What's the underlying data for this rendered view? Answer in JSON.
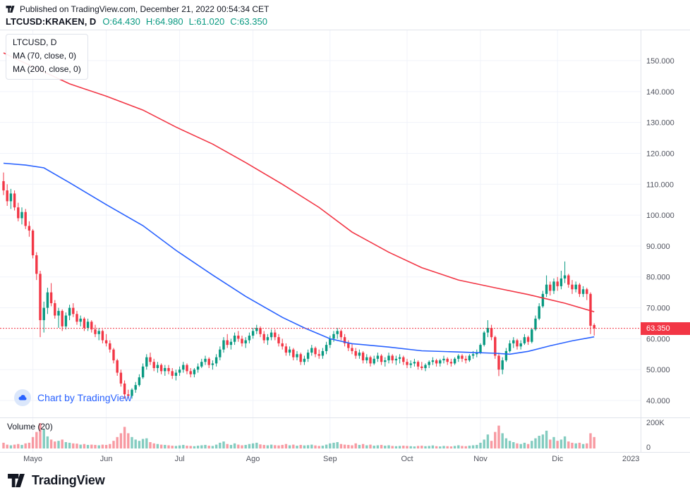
{
  "header": {
    "published": "Published on TradingView.com, December 21, 2022 00:54:34 CET",
    "symbol": "LTCUSD:KRAKEN, D",
    "ohlc": [
      "O:64.430",
      "H:64.980",
      "L:61.020",
      "C:63.350"
    ],
    "ohlc_color": "#089981"
  },
  "legend": {
    "title": "LTCUSD, D",
    "ma70": "MA (70, close, 0)",
    "ma200": "MA (200, close, 0)"
  },
  "watermark": "Chart by TradingView",
  "volume_pane": {
    "label": "Volume (20)"
  },
  "price_tag": "63.350",
  "footer": {
    "brand": "TradingView"
  },
  "colors": {
    "accent_blue": "#2962ff",
    "text_dark": "#131722",
    "axis_text": "#50535e"
  },
  "chart_data": {
    "type": "candlestick",
    "title": "LTCUSD:KRAKEN, D",
    "symbol": "LTCUSD",
    "exchange": "KRAKEN",
    "interval": "D",
    "xlabel": "",
    "ylabel": "",
    "ylim": [
      38,
      157
    ],
    "grid": true,
    "legend_position": "top-left",
    "last_price": 63.35,
    "price_ticks": [
      {
        "v": 150,
        "label": "150.000"
      },
      {
        "v": 140,
        "label": "140.000"
      },
      {
        "v": 130,
        "label": "130.000"
      },
      {
        "v": 120,
        "label": "120.000"
      },
      {
        "v": 110,
        "label": "110.000"
      },
      {
        "v": 100,
        "label": "100.000"
      },
      {
        "v": 90,
        "label": "90.000"
      },
      {
        "v": 80,
        "label": "80.000"
      },
      {
        "v": 70,
        "label": "70.000"
      },
      {
        "v": 60,
        "label": "60.000"
      },
      {
        "v": 50,
        "label": "50.000"
      },
      {
        "v": 40,
        "label": "40.000"
      }
    ],
    "volume_axis": {
      "max_k": 200,
      "labels": [
        "200K",
        "0"
      ]
    },
    "months": [
      {
        "label": "Mayo",
        "i": 8,
        "grid": true
      },
      {
        "label": "Jun",
        "i": 28,
        "grid": true
      },
      {
        "label": "Jul",
        "i": 48,
        "grid": true
      },
      {
        "label": "Ago",
        "i": 68,
        "grid": true
      },
      {
        "label": "Sep",
        "i": 89,
        "grid": true
      },
      {
        "label": "Oct",
        "i": 110,
        "grid": true
      },
      {
        "label": "Nov",
        "i": 130,
        "grid": true
      },
      {
        "label": "Dic",
        "i": 151,
        "grid": true
      },
      {
        "label": "2023",
        "i": 171,
        "grid": false
      }
    ],
    "colors": {
      "up": "#089981",
      "down": "#f23645",
      "vol_up": "rgba(8,153,129,0.5)",
      "vol_down": "rgba(242,54,69,0.5)"
    },
    "ma70": {
      "color": "#2962ff",
      "points": [
        [
          0,
          116.8
        ],
        [
          6,
          116.2
        ],
        [
          11,
          115.3
        ],
        [
          18,
          110.5
        ],
        [
          28,
          103.4
        ],
        [
          38,
          96.6
        ],
        [
          47,
          88.6
        ],
        [
          57,
          80.6
        ],
        [
          66,
          73.7
        ],
        [
          76,
          66.9
        ],
        [
          82,
          63.5
        ],
        [
          89,
          60.0
        ],
        [
          95,
          58.4
        ],
        [
          105,
          57.3
        ],
        [
          114,
          56.1
        ],
        [
          124,
          55.7
        ],
        [
          134,
          55.3
        ],
        [
          138,
          55.0
        ],
        [
          143,
          55.9
        ],
        [
          149,
          57.7
        ],
        [
          155,
          59.3
        ],
        [
          161,
          60.6
        ]
      ]
    },
    "ma200": {
      "color": "#f23645",
      "points": [
        [
          0,
          152.5
        ],
        [
          9,
          147.5
        ],
        [
          18,
          142.5
        ],
        [
          28,
          138.5
        ],
        [
          38,
          134.0
        ],
        [
          47,
          128.5
        ],
        [
          57,
          123.0
        ],
        [
          66,
          117.0
        ],
        [
          76,
          110.0
        ],
        [
          86,
          102.5
        ],
        [
          95,
          94.5
        ],
        [
          105,
          88.0
        ],
        [
          114,
          83.0
        ],
        [
          124,
          79.0
        ],
        [
          134,
          76.5
        ],
        [
          143,
          74.3
        ],
        [
          153,
          71.5
        ],
        [
          161,
          68.7
        ]
      ]
    },
    "candles": [
      [
        111.0,
        113.8,
        106.5,
        108.0
      ],
      [
        108.0,
        110.0,
        103.0,
        104.5
      ],
      [
        104.5,
        108.5,
        102.0,
        107.0
      ],
      [
        107.0,
        108.0,
        101.5,
        102.5
      ],
      [
        102.5,
        104.0,
        98.0,
        99.0
      ],
      [
        99.0,
        102.5,
        97.0,
        101.0
      ],
      [
        101.0,
        102.0,
        95.5,
        96.5
      ],
      [
        96.5,
        98.0,
        93.0,
        95.0
      ],
      [
        95.0,
        95.5,
        86.0,
        87.0
      ],
      [
        87.0,
        88.0,
        79.0,
        81.0
      ],
      [
        81.0,
        82.0,
        60.5,
        66.0
      ],
      [
        66.0,
        72.0,
        62.0,
        70.0
      ],
      [
        70.0,
        76.5,
        68.0,
        75.0
      ],
      [
        75.0,
        78.0,
        70.5,
        71.5
      ],
      [
        71.5,
        72.5,
        66.5,
        67.5
      ],
      [
        67.5,
        70.0,
        63.5,
        69.0
      ],
      [
        69.0,
        69.5,
        62.5,
        64.0
      ],
      [
        64.0,
        68.5,
        63.0,
        67.5
      ],
      [
        67.5,
        71.0,
        66.0,
        70.0
      ],
      [
        70.0,
        71.5,
        67.0,
        68.0
      ],
      [
        68.0,
        69.0,
        64.5,
        65.5
      ],
      [
        65.5,
        67.5,
        64.0,
        66.5
      ],
      [
        66.5,
        67.0,
        62.5,
        63.5
      ],
      [
        63.5,
        66.5,
        62.5,
        65.5
      ],
      [
        65.5,
        66.0,
        62.0,
        63.0
      ],
      [
        63.0,
        64.5,
        60.5,
        61.5
      ],
      [
        61.5,
        63.5,
        59.5,
        62.5
      ],
      [
        62.5,
        63.0,
        58.5,
        59.5
      ],
      [
        59.5,
        61.5,
        57.5,
        58.5
      ],
      [
        58.5,
        59.5,
        55.5,
        56.5
      ],
      [
        56.5,
        57.0,
        52.0,
        53.0
      ],
      [
        53.0,
        53.5,
        48.0,
        49.0
      ],
      [
        49.0,
        50.0,
        44.5,
        45.5
      ],
      [
        45.5,
        46.5,
        40.6,
        42.0
      ],
      [
        42.0,
        43.5,
        40.8,
        41.5
      ],
      [
        41.5,
        44.0,
        40.6,
        43.5
      ],
      [
        43.5,
        46.0,
        42.5,
        45.0
      ],
      [
        45.0,
        48.5,
        44.5,
        47.5
      ],
      [
        47.5,
        52.0,
        47.0,
        51.0
      ],
      [
        51.0,
        55.0,
        50.0,
        54.0
      ],
      [
        54.0,
        55.5,
        51.5,
        52.5
      ],
      [
        52.5,
        53.5,
        49.5,
        50.5
      ],
      [
        50.5,
        52.5,
        49.0,
        51.5
      ],
      [
        51.5,
        52.0,
        48.5,
        49.5
      ],
      [
        49.5,
        51.5,
        48.0,
        50.5
      ],
      [
        50.5,
        51.5,
        48.5,
        49.5
      ],
      [
        49.5,
        50.5,
        47.0,
        48.0
      ],
      [
        48.0,
        50.0,
        46.5,
        49.0
      ],
      [
        49.0,
        51.0,
        48.0,
        50.0
      ],
      [
        50.0,
        52.5,
        49.0,
        51.5
      ],
      [
        51.5,
        52.0,
        48.5,
        49.5
      ],
      [
        49.5,
        50.5,
        47.5,
        48.5
      ],
      [
        48.5,
        50.5,
        47.5,
        50.0
      ],
      [
        50.0,
        52.0,
        49.0,
        51.0
      ],
      [
        51.0,
        53.5,
        50.5,
        52.5
      ],
      [
        52.5,
        54.5,
        51.5,
        53.5
      ],
      [
        53.5,
        54.0,
        50.5,
        51.5
      ],
      [
        51.5,
        53.0,
        50.0,
        52.0
      ],
      [
        52.0,
        55.0,
        51.0,
        54.0
      ],
      [
        54.0,
        57.5,
        53.0,
        56.5
      ],
      [
        56.5,
        60.5,
        55.5,
        59.5
      ],
      [
        59.5,
        61.5,
        57.0,
        58.0
      ],
      [
        58.0,
        60.0,
        56.5,
        59.0
      ],
      [
        59.0,
        62.0,
        58.0,
        61.0
      ],
      [
        61.0,
        62.5,
        59.0,
        60.0
      ],
      [
        60.0,
        61.0,
        57.5,
        58.5
      ],
      [
        58.5,
        60.5,
        57.0,
        59.5
      ],
      [
        59.5,
        62.0,
        58.5,
        61.0
      ],
      [
        61.0,
        63.5,
        60.0,
        62.5
      ],
      [
        62.5,
        64.5,
        61.5,
        63.5
      ],
      [
        63.5,
        64.0,
        60.5,
        61.5
      ],
      [
        61.5,
        62.5,
        58.5,
        59.5
      ],
      [
        59.5,
        61.5,
        58.0,
        60.5
      ],
      [
        60.5,
        63.0,
        59.5,
        62.0
      ],
      [
        62.0,
        63.0,
        59.5,
        60.5
      ],
      [
        60.5,
        61.5,
        57.5,
        58.5
      ],
      [
        58.5,
        60.0,
        56.5,
        57.5
      ],
      [
        57.5,
        58.5,
        54.5,
        55.5
      ],
      [
        55.5,
        57.5,
        54.5,
        56.5
      ],
      [
        56.5,
        57.0,
        53.0,
        54.0
      ],
      [
        54.0,
        56.0,
        53.0,
        55.0
      ],
      [
        55.0,
        55.5,
        51.5,
        52.5
      ],
      [
        52.5,
        54.5,
        51.5,
        53.5
      ],
      [
        53.5,
        56.5,
        52.5,
        55.5
      ],
      [
        55.5,
        58.0,
        54.5,
        57.0
      ],
      [
        57.0,
        57.5,
        54.0,
        55.0
      ],
      [
        55.0,
        56.5,
        53.5,
        54.5
      ],
      [
        54.5,
        57.0,
        53.5,
        56.0
      ],
      [
        56.0,
        59.0,
        55.0,
        58.0
      ],
      [
        58.0,
        61.0,
        57.0,
        60.0
      ],
      [
        60.0,
        62.5,
        59.0,
        61.5
      ],
      [
        61.5,
        63.5,
        60.0,
        62.5
      ],
      [
        62.5,
        63.0,
        59.5,
        60.5
      ],
      [
        60.5,
        61.5,
        57.5,
        58.5
      ],
      [
        58.5,
        59.5,
        56.0,
        57.0
      ],
      [
        57.0,
        58.5,
        55.0,
        56.0
      ],
      [
        56.0,
        57.0,
        53.5,
        54.5
      ],
      [
        54.5,
        56.5,
        53.5,
        55.5
      ],
      [
        55.5,
        56.0,
        52.0,
        53.0
      ],
      [
        53.0,
        55.0,
        52.0,
        54.0
      ],
      [
        54.0,
        54.5,
        51.0,
        52.0
      ],
      [
        52.0,
        54.5,
        51.5,
        53.5
      ],
      [
        53.5,
        55.5,
        52.5,
        54.5
      ],
      [
        54.5,
        55.0,
        51.5,
        52.5
      ],
      [
        52.5,
        54.0,
        51.0,
        53.0
      ],
      [
        53.0,
        55.5,
        52.0,
        54.5
      ],
      [
        54.5,
        55.0,
        52.0,
        53.0
      ],
      [
        53.0,
        54.5,
        51.5,
        53.5
      ],
      [
        53.5,
        55.0,
        52.0,
        54.0
      ],
      [
        54.0,
        54.5,
        51.5,
        52.5
      ],
      [
        52.5,
        53.5,
        50.5,
        51.5
      ],
      [
        51.5,
        53.0,
        50.5,
        52.0
      ],
      [
        52.0,
        53.5,
        51.0,
        52.5
      ],
      [
        52.5,
        53.0,
        50.0,
        51.0
      ],
      [
        51.0,
        52.5,
        49.8,
        50.5
      ],
      [
        50.5,
        52.0,
        49.5,
        51.5
      ],
      [
        51.5,
        53.0,
        50.5,
        52.5
      ],
      [
        52.5,
        54.0,
        51.5,
        53.0
      ],
      [
        53.0,
        53.5,
        51.0,
        52.0
      ],
      [
        52.0,
        53.5,
        51.0,
        53.0
      ],
      [
        53.0,
        54.5,
        52.0,
        53.5
      ],
      [
        53.5,
        54.0,
        51.5,
        52.5
      ],
      [
        52.5,
        53.5,
        51.0,
        52.0
      ],
      [
        52.0,
        54.0,
        51.5,
        53.5
      ],
      [
        53.5,
        55.0,
        52.5,
        54.5
      ],
      [
        54.5,
        55.0,
        52.5,
        53.5
      ],
      [
        53.5,
        54.5,
        52.0,
        53.0
      ],
      [
        53.0,
        55.0,
        52.5,
        54.5
      ],
      [
        54.5,
        56.0,
        53.5,
        55.0
      ],
      [
        55.0,
        56.5,
        54.0,
        55.5
      ],
      [
        55.5,
        58.5,
        55.0,
        58.0
      ],
      [
        58.0,
        62.5,
        57.5,
        62.0
      ],
      [
        62.0,
        66.0,
        60.5,
        63.5
      ],
      [
        63.5,
        64.5,
        59.5,
        60.5
      ],
      [
        60.5,
        61.0,
        53.5,
        54.5
      ],
      [
        54.5,
        55.5,
        47.9,
        50.0
      ],
      [
        50.0,
        54.0,
        48.5,
        53.0
      ],
      [
        53.0,
        57.0,
        52.5,
        56.0
      ],
      [
        56.0,
        59.5,
        55.5,
        58.5
      ],
      [
        58.5,
        60.5,
        57.0,
        59.5
      ],
      [
        59.5,
        60.0,
        56.5,
        57.5
      ],
      [
        57.5,
        59.5,
        56.5,
        58.5
      ],
      [
        58.5,
        61.5,
        58.0,
        60.5
      ],
      [
        60.5,
        61.0,
        58.0,
        59.0
      ],
      [
        59.0,
        63.5,
        58.5,
        63.0
      ],
      [
        63.0,
        67.5,
        62.5,
        66.5
      ],
      [
        66.5,
        71.5,
        66.0,
        70.5
      ],
      [
        70.5,
        75.5,
        70.0,
        74.5
      ],
      [
        74.5,
        80.5,
        73.5,
        77.5
      ],
      [
        77.5,
        78.5,
        74.0,
        75.5
      ],
      [
        75.5,
        79.5,
        74.5,
        78.5
      ],
      [
        78.5,
        80.0,
        75.5,
        77.0
      ],
      [
        77.0,
        82.0,
        76.0,
        79.5
      ],
      [
        79.5,
        85.0,
        78.0,
        80.5
      ],
      [
        80.5,
        81.0,
        76.5,
        77.5
      ],
      [
        77.5,
        79.0,
        74.5,
        76.0
      ],
      [
        76.0,
        78.5,
        75.0,
        77.5
      ],
      [
        77.5,
        78.0,
        73.5,
        74.5
      ],
      [
        74.5,
        77.0,
        73.5,
        76.0
      ],
      [
        76.0,
        76.5,
        72.5,
        74.5
      ],
      [
        74.5,
        75.0,
        61.5,
        64.2
      ],
      [
        64.43,
        64.98,
        61.02,
        63.35
      ]
    ],
    "volumes_k": [
      45,
      30,
      25,
      30,
      35,
      28,
      40,
      45,
      90,
      130,
      200,
      150,
      95,
      70,
      55,
      60,
      70,
      50,
      45,
      40,
      38,
      30,
      35,
      28,
      30,
      28,
      25,
      30,
      28,
      35,
      60,
      90,
      120,
      170,
      120,
      90,
      70,
      60,
      75,
      80,
      50,
      40,
      35,
      30,
      28,
      25,
      22,
      20,
      24,
      28,
      22,
      20,
      18,
      22,
      25,
      28,
      22,
      20,
      30,
      45,
      55,
      35,
      28,
      40,
      30,
      25,
      28,
      35,
      40,
      45,
      32,
      28,
      25,
      30,
      26,
      24,
      28,
      35,
      25,
      30,
      22,
      28,
      24,
      26,
      30,
      24,
      20,
      22,
      30,
      40,
      45,
      50,
      35,
      30,
      28,
      25,
      40,
      28,
      35,
      25,
      30,
      22,
      25,
      28,
      22,
      25,
      20,
      18,
      20,
      22,
      20,
      18,
      16,
      20,
      22,
      18,
      20,
      24,
      18,
      16,
      20,
      18,
      16,
      20,
      25,
      20,
      18,
      22,
      25,
      28,
      45,
      70,
      110,
      60,
      130,
      180,
      120,
      80,
      60,
      50,
      40,
      35,
      45,
      35,
      60,
      80,
      100,
      110,
      140,
      70,
      90,
      60,
      70,
      95,
      55,
      45,
      40,
      45,
      35,
      40,
      120,
      90
    ]
  }
}
